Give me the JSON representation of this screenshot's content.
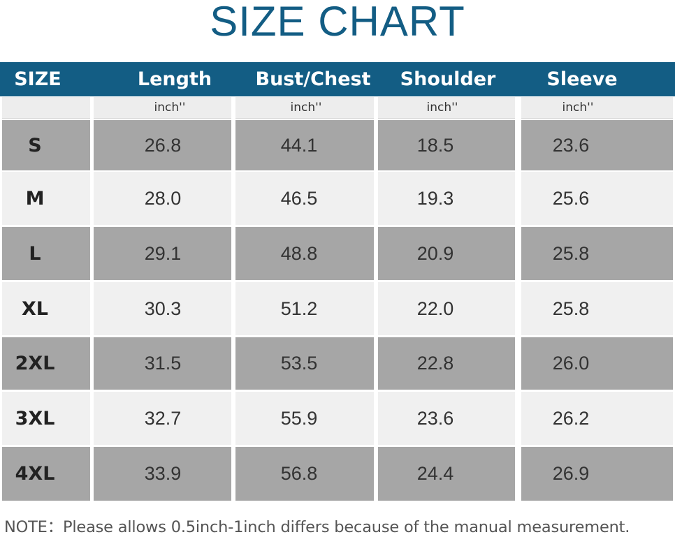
{
  "title": "SIZE CHART",
  "colors": {
    "header": "#135d84",
    "title": "#135d84",
    "row_dark": "#a6a6a6",
    "row_light": "#f0f0f0"
  },
  "headers": [
    "SIZE",
    "Length",
    "Bust/Chest",
    "Shoulder",
    "Sleeve"
  ],
  "units": [
    "",
    "inch''",
    "inch''",
    "inch''",
    "inch''"
  ],
  "rows": [
    {
      "size": "S",
      "values": [
        "26.8",
        "44.1",
        "18.5",
        "23.6"
      ]
    },
    {
      "size": "M",
      "values": [
        "28.0",
        "46.5",
        "19.3",
        "25.6"
      ]
    },
    {
      "size": "L",
      "values": [
        "29.1",
        "48.8",
        "20.9",
        "25.8"
      ]
    },
    {
      "size": "XL",
      "values": [
        "30.3",
        "51.2",
        "22.0",
        "25.8"
      ]
    },
    {
      "size": "2XL",
      "values": [
        "31.5",
        "53.5",
        "22.8",
        "26.0"
      ]
    },
    {
      "size": "3XL",
      "values": [
        "32.7",
        "55.9",
        "23.6",
        "26.2"
      ]
    },
    {
      "size": "4XL",
      "values": [
        "33.9",
        "56.8",
        "24.4",
        "26.9"
      ]
    }
  ],
  "note": "NOTE：Please allows 0.5inch-1inch differs because of the manual measurement."
}
